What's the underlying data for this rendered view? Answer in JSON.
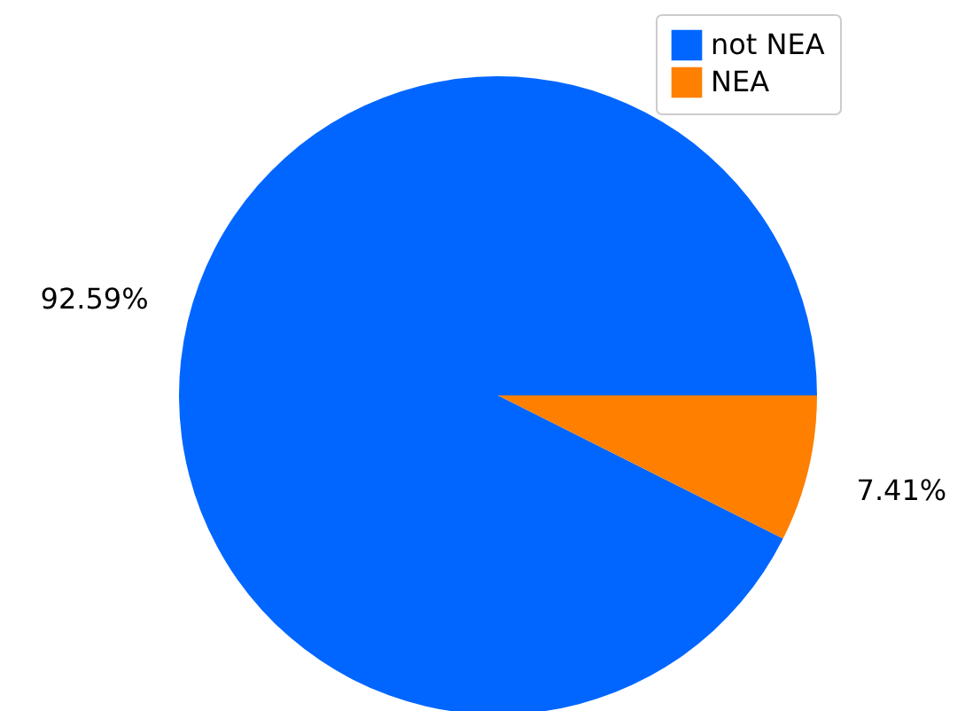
{
  "chart_data": {
    "type": "pie",
    "categories": [
      "not NEA",
      "NEA"
    ],
    "values": [
      92.59,
      7.41
    ],
    "colors": [
      "#0066ff",
      "#ff7f00"
    ],
    "value_labels": [
      "92.59%",
      "7.41%"
    ],
    "legend": "top right"
  }
}
